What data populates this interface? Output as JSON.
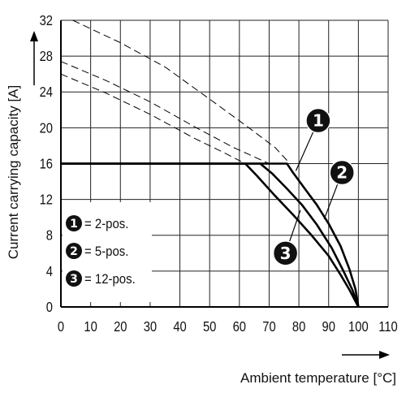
{
  "chart_data": {
    "type": "line",
    "xlabel": "Ambient temperature [°C]",
    "ylabel": "Current carrying capacity [A]",
    "xlim": [
      0,
      110
    ],
    "ylim": [
      0,
      32
    ],
    "x_ticks": [
      0,
      10,
      20,
      30,
      40,
      50,
      60,
      70,
      80,
      90,
      100,
      110
    ],
    "y_ticks": [
      0,
      4,
      8,
      12,
      16,
      20,
      24,
      28,
      32
    ],
    "grid": true,
    "legend_placement": "bottom-left",
    "legend": [
      {
        "badge": "1",
        "label": "= 2-pos."
      },
      {
        "badge": "2",
        "label": "= 5-pos."
      },
      {
        "badge": "3",
        "label": "= 12-pos."
      }
    ],
    "series": [
      {
        "badge": "1",
        "style": "solid",
        "x": [
          0,
          76,
          78,
          82,
          86,
          90,
          94,
          97,
          99,
          100
        ],
        "y": [
          16,
          16,
          15,
          13.2,
          11.4,
          9.3,
          6.8,
          4.2,
          2.0,
          0
        ]
      },
      {
        "badge": "2",
        "style": "solid",
        "x": [
          0,
          67,
          71,
          76,
          81,
          86,
          91,
          95,
          98,
          100
        ],
        "y": [
          16,
          16,
          14.9,
          13.2,
          11.4,
          9.2,
          6.6,
          4.0,
          1.9,
          0
        ]
      },
      {
        "badge": "3",
        "style": "solid",
        "x": [
          0,
          62,
          66,
          72,
          78,
          84,
          90,
          94,
          97,
          100
        ],
        "y": [
          16,
          16,
          14.6,
          12.4,
          10.3,
          8.1,
          5.7,
          3.6,
          1.9,
          0
        ]
      },
      {
        "badge": "1",
        "style": "dashed",
        "x": [
          4,
          20,
          35,
          50,
          62,
          72,
          77
        ],
        "y": [
          32,
          29.5,
          26.8,
          23.2,
          20.3,
          17.8,
          16
        ]
      },
      {
        "badge": "2",
        "style": "dashed",
        "x": [
          0,
          15,
          30,
          45,
          58,
          70
        ],
        "y": [
          27.4,
          25.3,
          22.9,
          20.1,
          17.8,
          16
        ]
      },
      {
        "badge": "3",
        "style": "dashed",
        "x": [
          0,
          15,
          30,
          45,
          55,
          62
        ],
        "y": [
          26,
          23.9,
          21.5,
          18.8,
          17.2,
          16
        ]
      }
    ],
    "callouts": [
      {
        "badge": "1",
        "label_x": 86.5,
        "label_y": 20.8,
        "target_x": 79,
        "target_y": 15.2
      },
      {
        "badge": "2",
        "label_x": 94.5,
        "label_y": 15.0,
        "target_x": 88.5,
        "target_y": 9.8
      },
      {
        "badge": "3",
        "label_x": 75.5,
        "label_y": 6.0,
        "target_x": 80.5,
        "target_y": 10.8
      }
    ]
  }
}
